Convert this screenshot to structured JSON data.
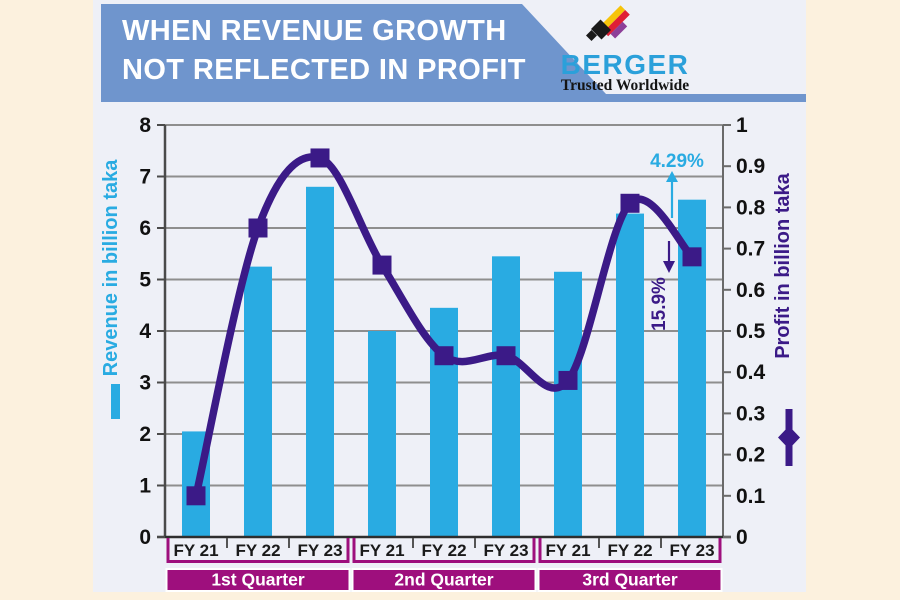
{
  "header": {
    "title_line1": "WHEN REVENUE GROWTH",
    "title_line2": "NOT REFLECTED IN PROFIT",
    "brand": {
      "name": "BERGER",
      "tagline": "Trusted Worldwide"
    }
  },
  "chart_data": {
    "type": "bar+line",
    "groups": [
      "1st Quarter",
      "2nd Quarter",
      "3rd Quarter"
    ],
    "categories": [
      "FY 21",
      "FY 22",
      "FY 23",
      "FY 21",
      "FY 22",
      "FY 23",
      "FY 21",
      "FY 22",
      "FY 23"
    ],
    "series": [
      {
        "name": "Revenue in billion taka",
        "type": "bar",
        "axis": "left",
        "values": [
          2.05,
          5.25,
          6.8,
          4.0,
          4.45,
          5.45,
          5.15,
          6.28,
          6.55
        ]
      },
      {
        "name": "Profit in billion taka",
        "type": "line",
        "axis": "right",
        "values": [
          0.1,
          0.75,
          0.92,
          0.66,
          0.44,
          0.44,
          0.38,
          0.81,
          0.68
        ]
      }
    ],
    "left_axis": {
      "label": "Revenue in billion taka",
      "min": 0,
      "max": 8,
      "tick_labels": [
        "0",
        "1",
        "2",
        "3",
        "4",
        "5",
        "6",
        "7",
        "8"
      ]
    },
    "right_axis": {
      "label": "Profit in billion taka",
      "min": 0,
      "max": 1,
      "tick_labels": [
        "0",
        "0.1",
        "0.2",
        "0.3",
        "0.4",
        "0.5",
        "0.6",
        "0.7",
        "0.8",
        "0.9",
        "1"
      ]
    },
    "annotations": [
      {
        "text": "4.29%",
        "applies_to": "revenue FY 23 3rd Quarter",
        "direction": "up"
      },
      {
        "text": "15.9%",
        "applies_to": "profit FY 23 3rd Quarter",
        "direction": "down"
      }
    ],
    "grid": true,
    "legend_position": "axis-titles"
  },
  "colors": {
    "background_cream": "#fcf1de",
    "panel": "#eef0f7",
    "banner_blue": "#6f95cd",
    "bar_cyan": "#29abe2",
    "line_purple": "#3b1a87",
    "quarter_magenta": "#9e0f7d",
    "gridline": "#8e8e8e",
    "axis_dark": "#2e2e2e",
    "brand_blue": "#2ba0da",
    "annotation_up": "#29abe2",
    "annotation_down": "#3b1a87"
  }
}
